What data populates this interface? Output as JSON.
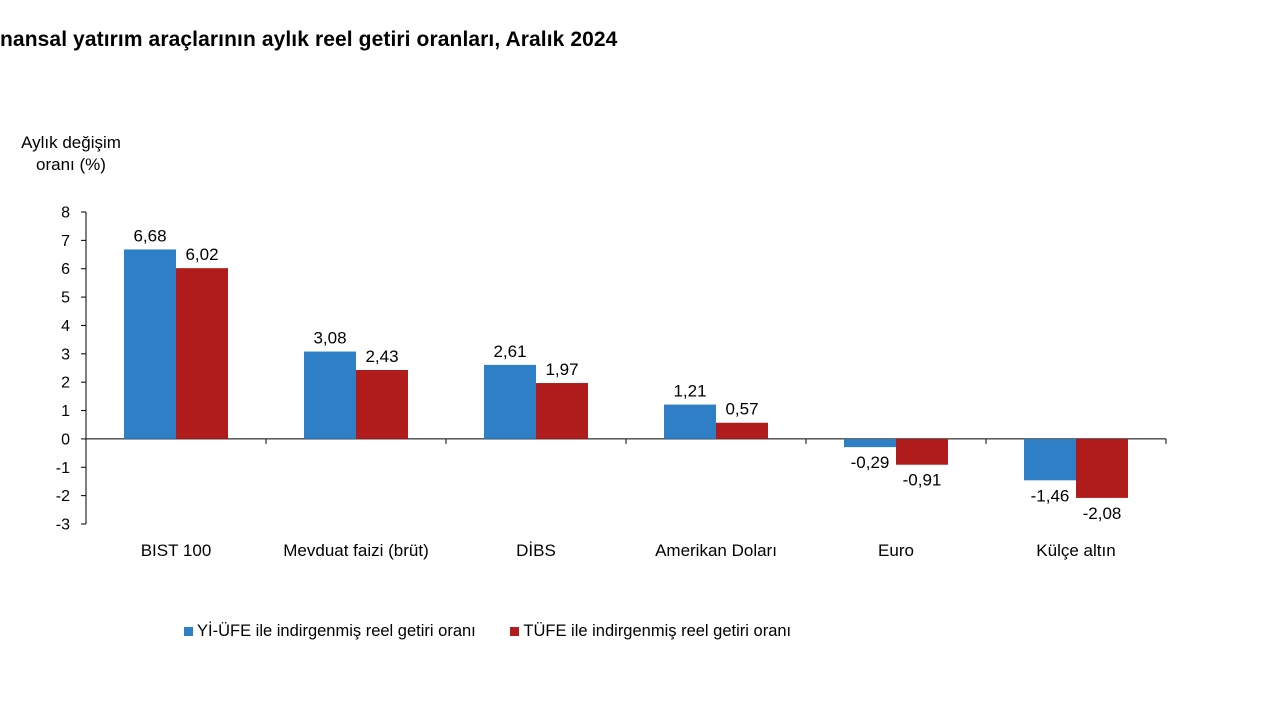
{
  "chart_data": {
    "type": "bar",
    "title": "nansal yatırım araçlarının aylık reel getiri oranları, Aralık 2024",
    "ylabel_lines": [
      "Aylık değişim",
      "oranı (%)"
    ],
    "xlabel": "",
    "ylim": [
      -3,
      8
    ],
    "yticks": [
      "8",
      "7",
      "6",
      "5",
      "4",
      "3",
      "2",
      "1",
      "0",
      "-1",
      "-2",
      "-3"
    ],
    "categories": [
      "BIST 100",
      "Mevduat faizi (brüt)",
      "DİBS",
      "Amerikan Doları",
      "Euro",
      "Külçe altın"
    ],
    "series": [
      {
        "name": "Yİ-ÜFE ile indirgenmiş reel getiri oranı",
        "color": "#2e7fc6",
        "values": [
          6.68,
          3.08,
          2.61,
          1.21,
          -0.29,
          -1.46
        ],
        "labels": [
          "6,68",
          "3,08",
          "2,61",
          "1,21",
          "-0,29",
          "-1,46"
        ]
      },
      {
        "name": "TÜFE ile indirgenmiş reel getiri oranı",
        "color": "#b01c1c",
        "values": [
          6.02,
          2.43,
          1.97,
          0.57,
          -0.91,
          -2.08
        ],
        "labels": [
          "6,02",
          "2,43",
          "1,97",
          "0,57",
          "-0,91",
          "-2,08"
        ]
      }
    ],
    "grid": false,
    "legend_position": "bottom"
  }
}
